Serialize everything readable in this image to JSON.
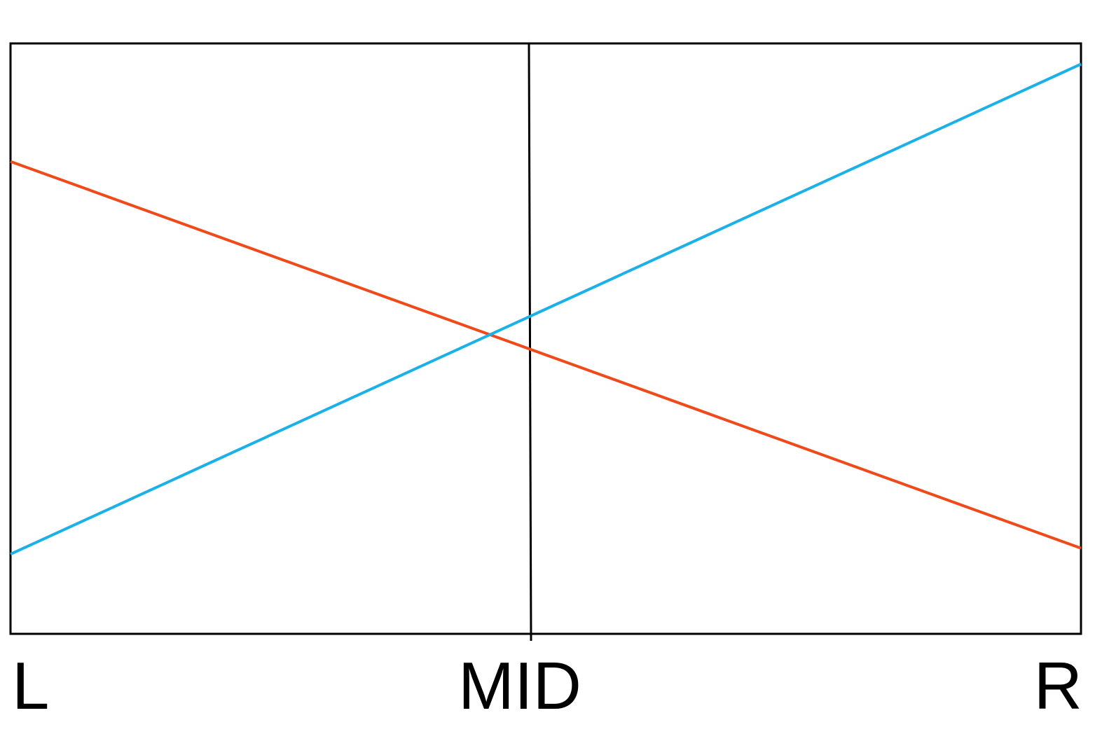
{
  "diagram": {
    "labels": {
      "left": "L",
      "mid": "MID",
      "right": "R"
    },
    "colors": {
      "frame": "#000000",
      "line_a": "#f04a1a",
      "line_b": "#1ab0e8"
    },
    "lines": [
      {
        "name": "orange-line",
        "color_key": "line_a",
        "start_level": 0.8,
        "end_level": 0.145
      },
      {
        "name": "blue-line",
        "color_key": "line_b",
        "start_level": 0.135,
        "end_level": 0.965
      }
    ]
  }
}
